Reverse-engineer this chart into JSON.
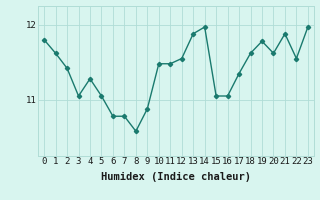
{
  "x": [
    0,
    1,
    2,
    3,
    4,
    5,
    6,
    7,
    8,
    9,
    10,
    11,
    12,
    13,
    14,
    15,
    16,
    17,
    18,
    19,
    20,
    21,
    22,
    23
  ],
  "y": [
    11.8,
    11.62,
    11.42,
    11.05,
    11.28,
    11.05,
    10.78,
    10.78,
    10.58,
    10.88,
    11.48,
    11.48,
    11.55,
    11.88,
    11.97,
    11.05,
    11.05,
    11.35,
    11.62,
    11.78,
    11.62,
    11.88,
    11.55,
    11.97
  ],
  "line_color": "#1a7a6e",
  "marker": "D",
  "marker_size": 2.2,
  "line_width": 1.0,
  "bg_color": "#d8f5ef",
  "grid_color": "#b0ddd6",
  "xlabel": "Humidex (Indice chaleur)",
  "xlabel_fontsize": 7.5,
  "yticks": [
    11,
    12
  ],
  "ylim": [
    10.25,
    12.25
  ],
  "xlim": [
    -0.5,
    23.5
  ],
  "xticks": [
    0,
    1,
    2,
    3,
    4,
    5,
    6,
    7,
    8,
    9,
    10,
    11,
    12,
    13,
    14,
    15,
    16,
    17,
    18,
    19,
    20,
    21,
    22,
    23
  ],
  "tick_fontsize": 6.5
}
